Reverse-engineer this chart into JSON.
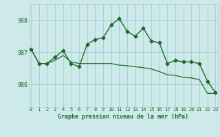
{
  "title": "Graphe pression niveau de la mer (hPa)",
  "bg_color": "#cee9e9",
  "grid_color": "#aacfcf",
  "line_color": "#1a6b2a",
  "x_ticks": [
    0,
    1,
    2,
    3,
    4,
    5,
    6,
    7,
    8,
    9,
    10,
    11,
    12,
    13,
    14,
    15,
    16,
    17,
    18,
    19,
    20,
    21,
    22,
    23
  ],
  "y_ticks": [
    986,
    987,
    988
  ],
  "ylim": [
    985.3,
    988.5
  ],
  "xlim": [
    -0.3,
    23.3
  ],
  "series1": [
    987.1,
    986.65,
    986.65,
    986.85,
    987.05,
    986.65,
    986.55,
    987.25,
    987.4,
    987.45,
    987.85,
    988.05,
    987.65,
    987.5,
    987.75,
    987.35,
    987.3,
    986.65,
    986.75,
    986.7,
    986.7,
    986.65,
    986.1,
    985.75
  ],
  "series2": [
    987.1,
    986.65,
    986.65,
    986.75,
    986.9,
    986.7,
    986.65,
    986.65,
    986.65,
    986.65,
    986.65,
    986.6,
    986.58,
    986.55,
    986.52,
    986.48,
    986.4,
    986.3,
    986.28,
    986.22,
    986.2,
    986.15,
    985.72,
    985.72
  ]
}
